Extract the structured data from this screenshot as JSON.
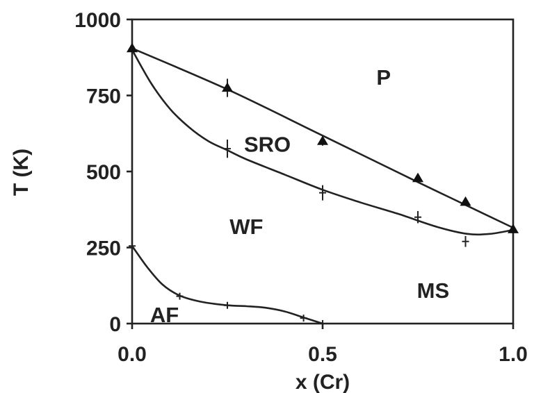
{
  "chart_data": {
    "type": "line",
    "title": "",
    "xlabel": "x (Cr)",
    "ylabel": "T (K)",
    "xlim": [
      0,
      1
    ],
    "ylim": [
      0,
      1000
    ],
    "xticks": [
      {
        "value": 0,
        "label": "0.0"
      },
      {
        "value": 0.5,
        "label": "0.5"
      },
      {
        "value": 1,
        "label": "1.0"
      }
    ],
    "yticks": [
      {
        "value": 0,
        "label": "0"
      },
      {
        "value": 250,
        "label": "250"
      },
      {
        "value": 500,
        "label": "500"
      },
      {
        "value": 750,
        "label": "750"
      },
      {
        "value": 1000,
        "label": "1000"
      }
    ],
    "grid": false,
    "legend": "none",
    "series": [
      {
        "marker": "triangle",
        "points": [
          {
            "x": 0.0,
            "y": 905,
            "err": 0
          },
          {
            "x": 0.25,
            "y": 775,
            "err": 30
          },
          {
            "x": 0.5,
            "y": 600,
            "err": 15
          },
          {
            "x": 0.75,
            "y": 478,
            "err": 12
          },
          {
            "x": 0.875,
            "y": 400,
            "err": 12
          },
          {
            "x": 1.0,
            "y": 310,
            "err": 10
          }
        ],
        "curve": [
          [
            0,
            905
          ],
          [
            0.25,
            770
          ],
          [
            0.5,
            618
          ],
          [
            0.75,
            465
          ],
          [
            0.875,
            390
          ],
          [
            1.0,
            315
          ]
        ]
      },
      {
        "marker": "plus",
        "points": [
          {
            "x": 0.25,
            "y": 575,
            "err": 30
          },
          {
            "x": 0.5,
            "y": 430,
            "err": 25
          },
          {
            "x": 0.75,
            "y": 350,
            "err": 20
          },
          {
            "x": 0.875,
            "y": 270,
            "err": 18
          }
        ],
        "curve": [
          [
            0,
            900
          ],
          [
            0.05,
            790
          ],
          [
            0.1,
            705
          ],
          [
            0.15,
            645
          ],
          [
            0.2,
            600
          ],
          [
            0.25,
            570
          ],
          [
            0.3,
            540
          ],
          [
            0.4,
            490
          ],
          [
            0.5,
            440
          ],
          [
            0.6,
            398
          ],
          [
            0.7,
            360
          ],
          [
            0.8,
            318
          ],
          [
            0.88,
            295
          ],
          [
            0.94,
            295
          ],
          [
            1.0,
            308
          ]
        ]
      },
      {
        "marker": "plus",
        "points": [
          {
            "x": 0.0,
            "y": 255,
            "err": 0
          },
          {
            "x": 0.125,
            "y": 90,
            "err": 0
          },
          {
            "x": 0.25,
            "y": 60,
            "err": 0
          },
          {
            "x": 0.45,
            "y": 18,
            "err": 0
          },
          {
            "x": 0.5,
            "y": 0,
            "err": 0
          }
        ],
        "curve": [
          [
            0,
            255
          ],
          [
            0.04,
            185
          ],
          [
            0.08,
            128
          ],
          [
            0.125,
            92
          ],
          [
            0.18,
            72
          ],
          [
            0.25,
            60
          ],
          [
            0.3,
            57
          ],
          [
            0.35,
            52
          ],
          [
            0.4,
            40
          ],
          [
            0.45,
            20
          ],
          [
            0.5,
            0
          ]
        ]
      }
    ],
    "regions": [
      {
        "label": "P",
        "x": 0.66,
        "y": 810
      },
      {
        "label": "SRO",
        "x": 0.355,
        "y": 590
      },
      {
        "label": "WF",
        "x": 0.3,
        "y": 320
      },
      {
        "label": "MS",
        "x": 0.79,
        "y": 110
      },
      {
        "label": "AF",
        "x": 0.085,
        "y": 30
      }
    ]
  }
}
